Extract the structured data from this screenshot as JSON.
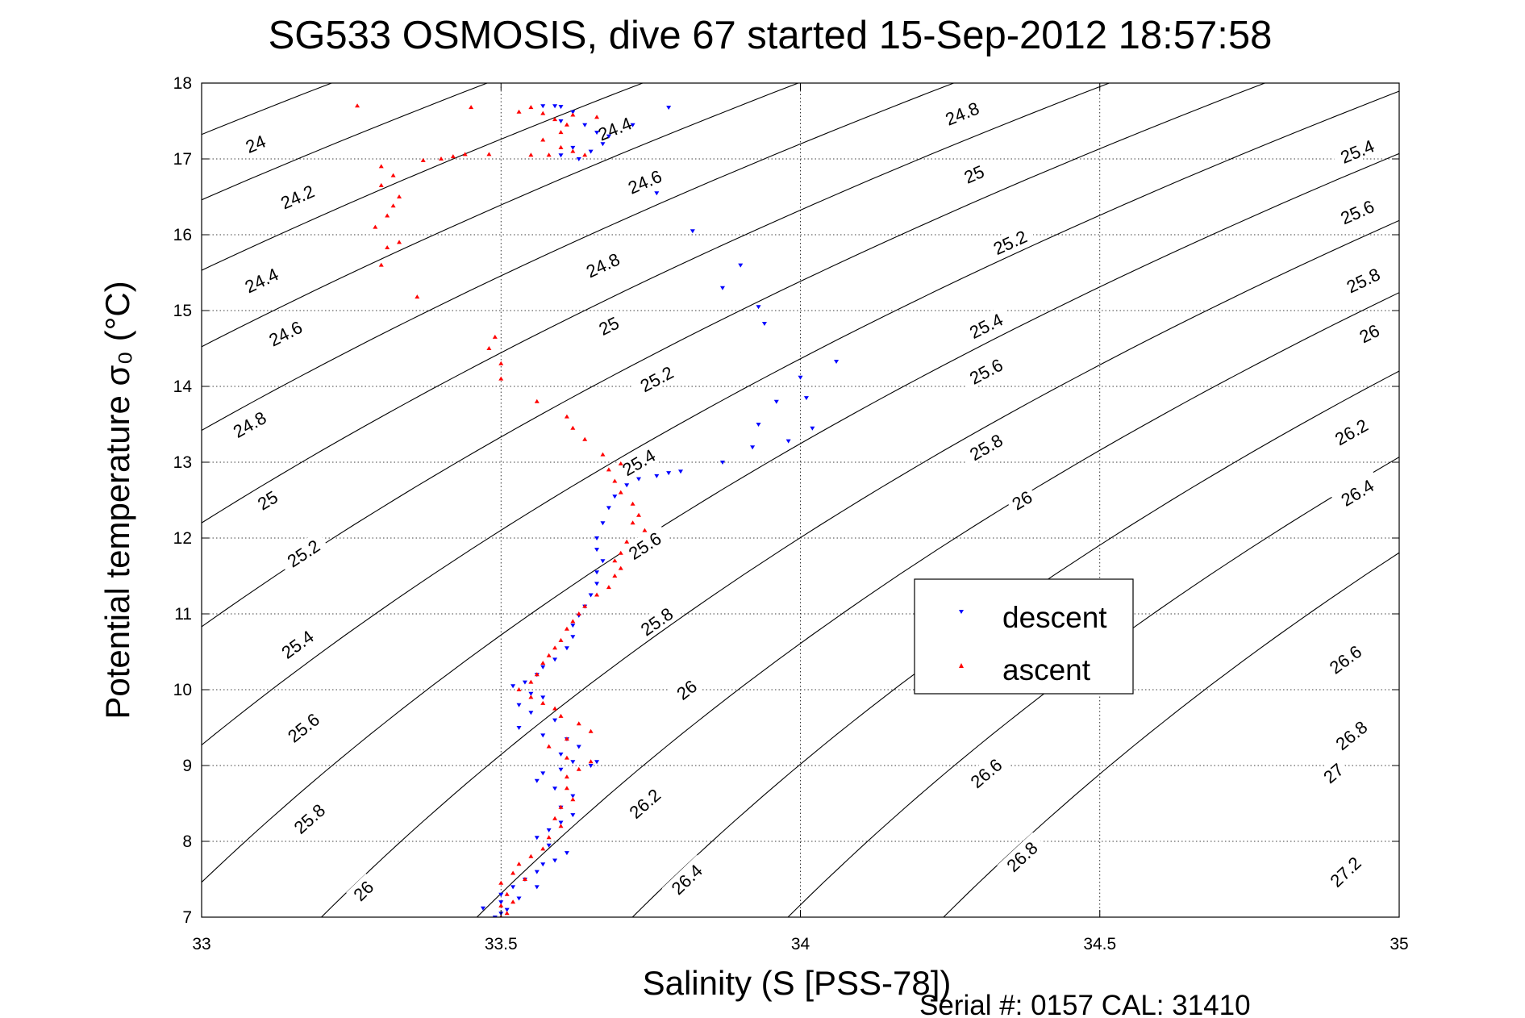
{
  "chart_data": {
    "type": "scatter",
    "title": "SG533 OSMOSIS, dive 67 started 15-Sep-2012 18:57:58",
    "xlabel": "Salinity (S [PSS-78])",
    "ylabel": "Potential temperature σ₀ (°C)",
    "xlim": [
      33,
      35
    ],
    "ylim": [
      7,
      18
    ],
    "xticks": [
      "33",
      "33.5",
      "34",
      "34.5",
      "35"
    ],
    "yticks": [
      "7",
      "8",
      "9",
      "10",
      "11",
      "12",
      "13",
      "14",
      "15",
      "16",
      "17",
      "18"
    ],
    "grid": true,
    "legend_position": "right-center",
    "footer": "Serial #: 0157  CAL: 31410",
    "density_contours": {
      "levels": [
        24,
        24.2,
        24.4,
        24.6,
        24.8,
        25,
        25.2,
        25.4,
        25.6,
        25.8,
        26,
        26.2,
        26.4,
        26.6,
        26.8,
        27,
        27.2
      ],
      "labels": [
        {
          "text": "24",
          "s": 33.09,
          "t": 17.2
        },
        {
          "text": "24.2",
          "s": 33.16,
          "t": 16.5
        },
        {
          "text": "24.4",
          "s": 33.1,
          "t": 15.4
        },
        {
          "text": "24.6",
          "s": 33.14,
          "t": 14.7
        },
        {
          "text": "24.8",
          "s": 33.08,
          "t": 13.5
        },
        {
          "text": "25",
          "s": 33.11,
          "t": 12.5
        },
        {
          "text": "25.2",
          "s": 33.17,
          "t": 11.8
        },
        {
          "text": "25.4",
          "s": 33.16,
          "t": 10.6
        },
        {
          "text": "25.6",
          "s": 33.17,
          "t": 9.5
        },
        {
          "text": "25.8",
          "s": 33.18,
          "t": 8.3
        },
        {
          "text": "26",
          "s": 33.27,
          "t": 7.35
        },
        {
          "text": "24.4",
          "s": 33.69,
          "t": 17.4
        },
        {
          "text": "24.6",
          "s": 33.74,
          "t": 16.7
        },
        {
          "text": "24.8",
          "s": 33.67,
          "t": 15.6
        },
        {
          "text": "25",
          "s": 33.68,
          "t": 14.8
        },
        {
          "text": "25.2",
          "s": 33.76,
          "t": 14.1
        },
        {
          "text": "25.4",
          "s": 33.73,
          "t": 13.0
        },
        {
          "text": "25.6",
          "s": 33.74,
          "t": 11.9
        },
        {
          "text": "25.8",
          "s": 33.76,
          "t": 10.9
        },
        {
          "text": "26",
          "s": 33.81,
          "t": 10.0
        },
        {
          "text": "26.2",
          "s": 33.74,
          "t": 8.5
        },
        {
          "text": "26.4",
          "s": 33.81,
          "t": 7.5
        },
        {
          "text": "24.8",
          "s": 34.27,
          "t": 17.6
        },
        {
          "text": "25",
          "s": 34.29,
          "t": 16.8
        },
        {
          "text": "25.2",
          "s": 34.35,
          "t": 15.9
        },
        {
          "text": "25.4",
          "s": 34.31,
          "t": 14.8
        },
        {
          "text": "25.6",
          "s": 34.31,
          "t": 14.2
        },
        {
          "text": "25.8",
          "s": 34.31,
          "t": 13.2
        },
        {
          "text": "26",
          "s": 34.37,
          "t": 12.5
        },
        {
          "text": "26.6",
          "s": 34.31,
          "t": 8.9
        },
        {
          "text": "26.8",
          "s": 34.37,
          "t": 7.8
        },
        {
          "text": "25.4",
          "s": 34.93,
          "t": 17.1
        },
        {
          "text": "25.6",
          "s": 34.93,
          "t": 16.3
        },
        {
          "text": "25.8",
          "s": 34.94,
          "t": 15.4
        },
        {
          "text": "26",
          "s": 34.95,
          "t": 14.7
        },
        {
          "text": "26.2",
          "s": 34.92,
          "t": 13.4
        },
        {
          "text": "26.4",
          "s": 34.93,
          "t": 12.6
        },
        {
          "text": "26.6",
          "s": 34.91,
          "t": 10.4
        },
        {
          "text": "26.8",
          "s": 34.92,
          "t": 9.4
        },
        {
          "text": "27",
          "s": 34.89,
          "t": 8.9
        },
        {
          "text": "27.2",
          "s": 34.91,
          "t": 7.6
        }
      ]
    },
    "series": [
      {
        "name": "descent",
        "color": "#0000ff",
        "marker": "triangle-down",
        "points": [
          [
            33.57,
            17.7
          ],
          [
            33.59,
            17.7
          ],
          [
            33.6,
            17.69
          ],
          [
            33.62,
            17.62
          ],
          [
            33.6,
            17.5
          ],
          [
            33.64,
            17.45
          ],
          [
            33.66,
            17.35
          ],
          [
            33.68,
            17.3
          ],
          [
            33.62,
            17.15
          ],
          [
            33.65,
            17.1
          ],
          [
            33.63,
            17.0
          ],
          [
            33.6,
            17.05
          ],
          [
            33.67,
            17.2
          ],
          [
            33.78,
            17.68
          ],
          [
            33.72,
            17.45
          ],
          [
            33.76,
            16.55
          ],
          [
            33.82,
            16.05
          ],
          [
            33.9,
            15.6
          ],
          [
            33.87,
            15.3
          ],
          [
            33.93,
            15.05
          ],
          [
            33.94,
            14.83
          ],
          [
            34.06,
            14.33
          ],
          [
            34.0,
            14.12
          ],
          [
            34.01,
            13.85
          ],
          [
            33.96,
            13.8
          ],
          [
            33.93,
            13.5
          ],
          [
            34.02,
            13.45
          ],
          [
            33.98,
            13.28
          ],
          [
            33.92,
            13.2
          ],
          [
            33.87,
            13.0
          ],
          [
            33.8,
            12.88
          ],
          [
            33.78,
            12.86
          ],
          [
            33.76,
            12.82
          ],
          [
            33.73,
            12.78
          ],
          [
            33.71,
            12.7
          ],
          [
            33.69,
            12.55
          ],
          [
            33.68,
            12.4
          ],
          [
            33.67,
            12.2
          ],
          [
            33.66,
            12.0
          ],
          [
            33.66,
            11.85
          ],
          [
            33.67,
            11.7
          ],
          [
            33.66,
            11.55
          ],
          [
            33.66,
            11.4
          ],
          [
            33.65,
            11.25
          ],
          [
            33.64,
            11.1
          ],
          [
            33.63,
            10.98
          ],
          [
            33.62,
            10.85
          ],
          [
            33.62,
            10.7
          ],
          [
            33.61,
            10.55
          ],
          [
            33.59,
            10.4
          ],
          [
            33.57,
            10.3
          ],
          [
            33.56,
            10.2
          ],
          [
            33.54,
            10.1
          ],
          [
            33.52,
            10.05
          ],
          [
            33.55,
            9.95
          ],
          [
            33.57,
            9.9
          ],
          [
            33.53,
            9.8
          ],
          [
            33.55,
            9.7
          ],
          [
            33.59,
            9.6
          ],
          [
            33.53,
            9.5
          ],
          [
            33.57,
            9.4
          ],
          [
            33.61,
            9.35
          ],
          [
            33.63,
            9.25
          ],
          [
            33.6,
            9.15
          ],
          [
            33.62,
            9.05
          ],
          [
            33.66,
            9.05
          ],
          [
            33.65,
            9.0
          ],
          [
            33.6,
            8.95
          ],
          [
            33.57,
            8.9
          ],
          [
            33.56,
            8.8
          ],
          [
            33.59,
            8.7
          ],
          [
            33.62,
            8.6
          ],
          [
            33.6,
            8.45
          ],
          [
            33.62,
            8.35
          ],
          [
            33.6,
            8.25
          ],
          [
            33.58,
            8.15
          ],
          [
            33.56,
            8.05
          ],
          [
            33.58,
            7.95
          ],
          [
            33.61,
            7.85
          ],
          [
            33.59,
            7.75
          ],
          [
            33.57,
            7.7
          ],
          [
            33.56,
            7.6
          ],
          [
            33.54,
            7.5
          ],
          [
            33.56,
            7.4
          ],
          [
            33.52,
            7.4
          ],
          [
            33.5,
            7.3
          ],
          [
            33.53,
            7.25
          ],
          [
            33.5,
            7.2
          ],
          [
            33.51,
            7.1
          ],
          [
            33.47,
            7.12
          ],
          [
            33.5,
            7.05
          ],
          [
            33.49,
            7.0
          ]
        ]
      },
      {
        "name": "ascent",
        "color": "#ff0000",
        "marker": "triangle-up",
        "points": [
          [
            33.26,
            17.7
          ],
          [
            33.45,
            17.68
          ],
          [
            33.55,
            17.68
          ],
          [
            33.53,
            17.62
          ],
          [
            33.57,
            17.6
          ],
          [
            33.59,
            17.52
          ],
          [
            33.62,
            17.58
          ],
          [
            33.66,
            17.55
          ],
          [
            33.61,
            17.45
          ],
          [
            33.6,
            17.35
          ],
          [
            33.57,
            17.25
          ],
          [
            33.6,
            17.15
          ],
          [
            33.62,
            17.1
          ],
          [
            33.64,
            17.05
          ],
          [
            33.58,
            17.05
          ],
          [
            33.55,
            17.05
          ],
          [
            33.48,
            17.06
          ],
          [
            33.44,
            17.06
          ],
          [
            33.42,
            17.03
          ],
          [
            33.4,
            17.0
          ],
          [
            33.37,
            16.98
          ],
          [
            33.3,
            16.9
          ],
          [
            33.32,
            16.78
          ],
          [
            33.3,
            16.65
          ],
          [
            33.33,
            16.5
          ],
          [
            33.32,
            16.38
          ],
          [
            33.31,
            16.25
          ],
          [
            33.29,
            16.1
          ],
          [
            33.33,
            15.9
          ],
          [
            33.31,
            15.83
          ],
          [
            33.3,
            15.6
          ],
          [
            33.36,
            15.18
          ],
          [
            33.49,
            14.65
          ],
          [
            33.48,
            14.5
          ],
          [
            33.5,
            14.3
          ],
          [
            33.5,
            14.1
          ],
          [
            33.56,
            13.8
          ],
          [
            33.61,
            13.6
          ],
          [
            33.62,
            13.45
          ],
          [
            33.64,
            13.3
          ],
          [
            33.67,
            13.1
          ],
          [
            33.7,
            12.98
          ],
          [
            33.68,
            12.9
          ],
          [
            33.69,
            12.75
          ],
          [
            33.7,
            12.6
          ],
          [
            33.72,
            12.45
          ],
          [
            33.73,
            12.3
          ],
          [
            33.72,
            12.2
          ],
          [
            33.74,
            12.1
          ],
          [
            33.71,
            11.95
          ],
          [
            33.7,
            11.8
          ],
          [
            33.69,
            11.7
          ],
          [
            33.7,
            11.6
          ],
          [
            33.69,
            11.5
          ],
          [
            33.68,
            11.35
          ],
          [
            33.66,
            11.25
          ],
          [
            33.64,
            11.1
          ],
          [
            33.63,
            11.0
          ],
          [
            33.62,
            10.9
          ],
          [
            33.61,
            10.8
          ],
          [
            33.6,
            10.65
          ],
          [
            33.59,
            10.55
          ],
          [
            33.58,
            10.45
          ],
          [
            33.57,
            10.35
          ],
          [
            33.56,
            10.2
          ],
          [
            33.55,
            10.1
          ],
          [
            33.53,
            10.0
          ],
          [
            33.55,
            9.9
          ],
          [
            33.57,
            9.82
          ],
          [
            33.59,
            9.75
          ],
          [
            33.6,
            9.65
          ],
          [
            33.63,
            9.55
          ],
          [
            33.65,
            9.45
          ],
          [
            33.61,
            9.35
          ],
          [
            33.58,
            9.25
          ],
          [
            33.61,
            9.1
          ],
          [
            33.65,
            9.05
          ],
          [
            33.63,
            8.95
          ],
          [
            33.61,
            8.85
          ],
          [
            33.61,
            8.7
          ],
          [
            33.62,
            8.55
          ],
          [
            33.6,
            8.45
          ],
          [
            33.59,
            8.3
          ],
          [
            33.6,
            8.2
          ],
          [
            33.58,
            8.05
          ],
          [
            33.57,
            7.9
          ],
          [
            33.55,
            7.8
          ],
          [
            33.53,
            7.7
          ],
          [
            33.52,
            7.58
          ],
          [
            33.54,
            7.5
          ],
          [
            33.5,
            7.45
          ],
          [
            33.51,
            7.3
          ],
          [
            33.52,
            7.2
          ],
          [
            33.5,
            7.15
          ],
          [
            33.51,
            7.05
          ],
          [
            33.5,
            7.0
          ]
        ]
      }
    ]
  }
}
